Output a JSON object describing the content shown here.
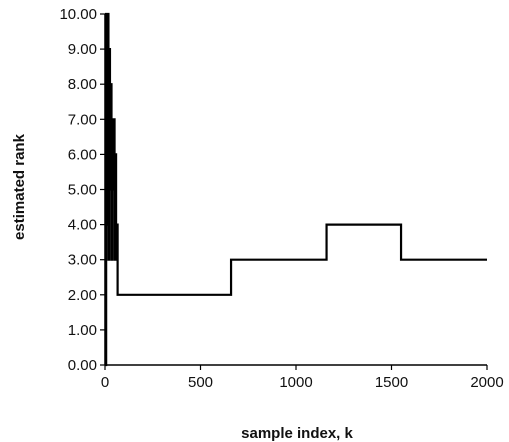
{
  "chart_data": {
    "type": "line",
    "title": "",
    "xlabel": "sample index, k",
    "ylabel": "estimated rank",
    "xlim": [
      0,
      2000
    ],
    "ylim": [
      0,
      10
    ],
    "x_ticks": [
      0,
      500,
      1000,
      1500,
      2000
    ],
    "x_tick_labels": [
      "0",
      "500",
      "1000",
      "1500",
      "2000"
    ],
    "y_ticks": [
      0,
      1,
      2,
      3,
      4,
      5,
      6,
      7,
      8,
      9,
      10
    ],
    "y_tick_labels": [
      "0.00",
      "1.00",
      "2.00",
      "3.00",
      "4.00",
      "5.00",
      "6.00",
      "7.00",
      "8.00",
      "9.00",
      "10.00"
    ],
    "grid": false,
    "legend": "none",
    "line_color": "#000000",
    "series": [
      {
        "step": true,
        "x": [
          0,
          3,
          6,
          10,
          14,
          18,
          22,
          26,
          30,
          34,
          38,
          42,
          46,
          50,
          54,
          58,
          62,
          66,
          660,
          1160,
          1550,
          2000
        ],
        "y": [
          10,
          0,
          10,
          4,
          10,
          3,
          9,
          5,
          8,
          3,
          7,
          5,
          7,
          3,
          6,
          3,
          4,
          2,
          3,
          4,
          3,
          3
        ]
      }
    ]
  }
}
